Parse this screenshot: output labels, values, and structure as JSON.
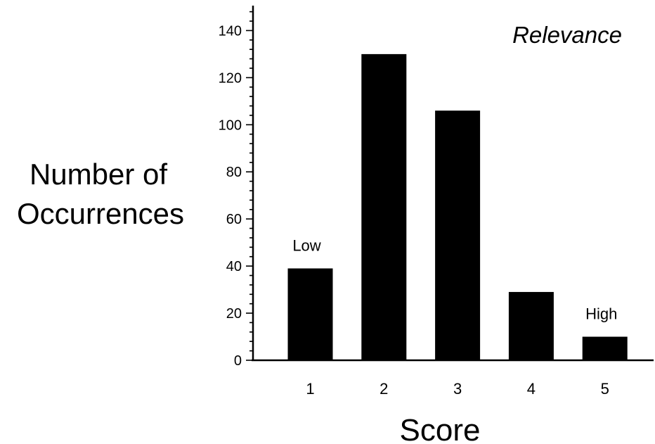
{
  "chart_data": {
    "type": "bar",
    "title": "Relevance",
    "xlabel": "Score",
    "ylabel_lines": [
      "Number of",
      "Occurrences"
    ],
    "categories": [
      "1",
      "2",
      "3",
      "4",
      "5"
    ],
    "values": [
      39,
      130,
      106,
      29,
      10
    ],
    "ylim": [
      0,
      150
    ],
    "yticks": [
      "0",
      "20",
      "40",
      "60",
      "80",
      "100",
      "120",
      "140"
    ],
    "annotations": [
      {
        "text": "Low",
        "category": "1"
      },
      {
        "text": "High",
        "category": "5"
      }
    ],
    "bar_color": "#000000",
    "grid": false,
    "legend": "none"
  }
}
